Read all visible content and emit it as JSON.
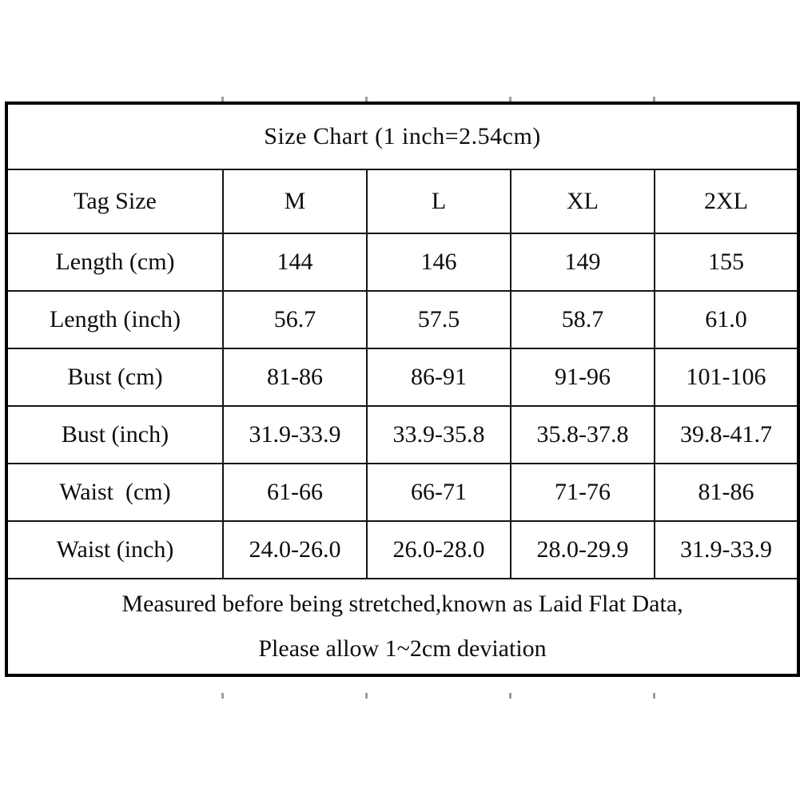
{
  "title": "Size Chart (1 inch=2.54cm)",
  "table": {
    "header": [
      "Tag Size",
      "M",
      "L",
      "XL",
      "2XL"
    ],
    "rows": [
      [
        "Length (cm)",
        "144",
        "146",
        "149",
        "155"
      ],
      [
        "Length (inch)",
        "56.7",
        "57.5",
        "58.7",
        "61.0"
      ],
      [
        "Bust (cm)",
        "81-86",
        "86-91",
        "91-96",
        "101-106"
      ],
      [
        "Bust (inch)",
        "31.9-33.9",
        "33.9-35.8",
        "35.8-37.8",
        "39.8-41.7"
      ],
      [
        "Waist  (cm)",
        "61-66",
        "66-71",
        "71-76",
        "81-86"
      ],
      [
        "Waist (inch)",
        "24.0-26.0",
        "26.0-28.0",
        "28.0-29.9",
        "31.9-33.9"
      ]
    ]
  },
  "footer": {
    "line1": "Measured before being stretched,known as Laid Flat Data,",
    "line2": "Please allow 1~2cm deviation"
  },
  "colors": {
    "border": "#000000",
    "text": "#0d0d12",
    "background": "#ffffff"
  }
}
